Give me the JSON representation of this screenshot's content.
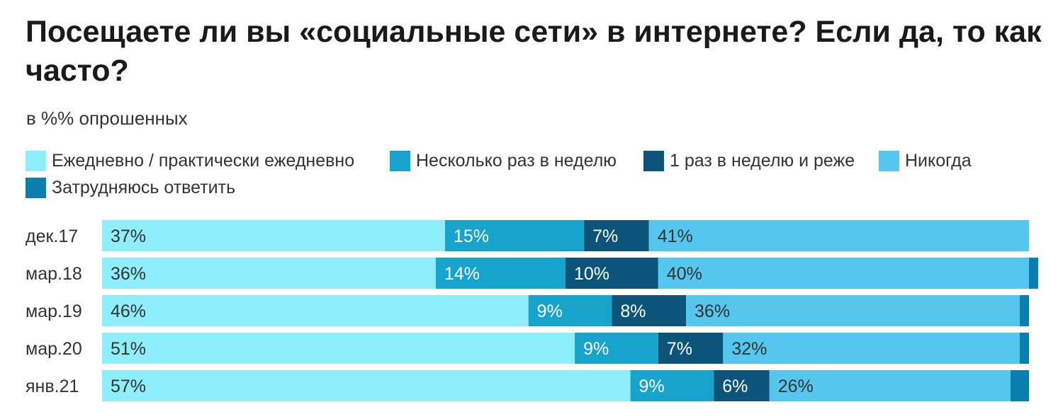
{
  "chart_data": {
    "type": "bar",
    "orientation": "horizontal",
    "stacked": true,
    "title": "Посещаете ли вы «социальные сети» в интернете? Если да, то как часто?",
    "subtitle": "в %% опрошенных",
    "xlabel": "",
    "ylabel": "",
    "xlim": [
      0,
      100
    ],
    "grid": false,
    "legend_position": "top",
    "categories": [
      "дек.17",
      "мар.18",
      "мар.19",
      "мар.20",
      "янв.21"
    ],
    "series": [
      {
        "name": "Ежедневно / практически ежедневно",
        "color": "#8eeefc",
        "values": [
          37,
          36,
          46,
          51,
          57
        ],
        "labels": [
          "37%",
          "36%",
          "46%",
          "51%",
          "57%"
        ]
      },
      {
        "name": "Несколько раз в неделю",
        "color": "#16a3cc",
        "values": [
          15,
          14,
          9,
          9,
          9
        ],
        "labels": [
          "15%",
          "14%",
          "9%",
          "9%",
          "9%"
        ]
      },
      {
        "name": "1 раз в неделю и реже",
        "color": "#0c5479",
        "values": [
          7,
          10,
          8,
          7,
          6
        ],
        "labels": [
          "7%",
          "10%",
          "8%",
          "7%",
          "6%"
        ]
      },
      {
        "name": "Никогда",
        "color": "#55c6ee",
        "values": [
          41,
          40,
          36,
          32,
          26
        ],
        "labels": [
          "41%",
          "40%",
          "36%",
          "32%",
          "26%"
        ]
      },
      {
        "name": "Затрудняюсь ответить",
        "color": "#0a7fae",
        "values": [
          0,
          1,
          1,
          1,
          2
        ],
        "labels": [
          "",
          "",
          "",
          "",
          ""
        ]
      }
    ]
  }
}
